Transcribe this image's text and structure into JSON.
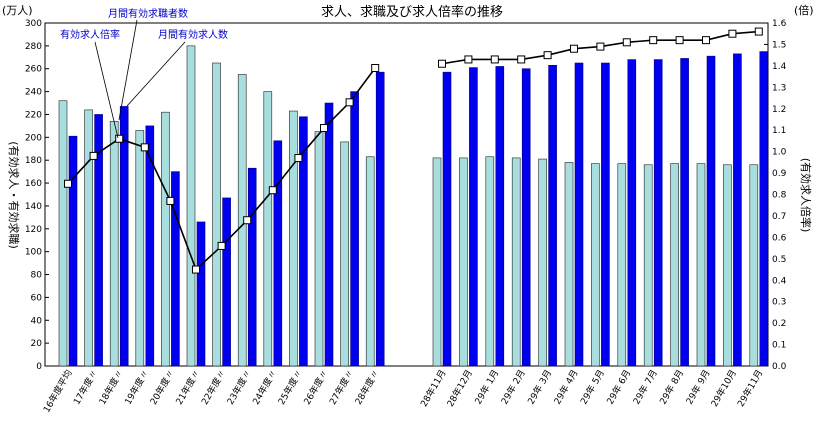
{
  "chart_data": {
    "type": "bar",
    "title": "求人、求職及び求人倍率の推移",
    "left_unit": "(万人)",
    "right_unit": "(倍)",
    "left_axis_label": "(有効求人・有効求職)",
    "right_axis_label": "(有効求人倍率)",
    "ylim_left": [
      0,
      300
    ],
    "ylim_right": [
      0.0,
      1.6
    ],
    "left_ticks": [
      "0",
      "20",
      "40",
      "60",
      "80",
      "100",
      "120",
      "140",
      "160",
      "180",
      "200",
      "220",
      "240",
      "260",
      "280",
      "300"
    ],
    "right_ticks": [
      "0.0",
      "0.1",
      "0.2",
      "0.3",
      "0.4",
      "0.5",
      "0.6",
      "0.7",
      "0.8",
      "0.9",
      "1.0",
      "1.1",
      "1.2",
      "1.3",
      "1.4",
      "1.5",
      "1.6"
    ],
    "categories_group1": [
      "16年度平均",
      "17年度〃",
      "18年度〃",
      "19年度〃",
      "20年度〃",
      "21年度〃",
      "22年度〃",
      "23年度〃",
      "24年度〃",
      "25年度〃",
      "26年度〃",
      "27年度〃",
      "28年度〃"
    ],
    "categories_group2": [
      "28年11月",
      "28年12月",
      "29年 1月",
      "29年 2月",
      "29年 3月",
      "29年 4月",
      "29年 5月",
      "29年 6月",
      "29年 7月",
      "29年 8月",
      "29年 9月",
      "29年10月",
      "29年11月"
    ],
    "series": [
      {
        "name": "月間有効求職者数",
        "color": "#a8dede",
        "values": [
          232,
          224,
          214,
          206,
          222,
          280,
          265,
          255,
          240,
          223,
          205,
          196,
          183,
          182,
          182,
          183,
          182,
          181,
          178,
          177,
          177,
          176,
          177,
          177,
          176,
          176
        ]
      },
      {
        "name": "月間有効求人数",
        "color": "#0000ee",
        "values": [
          201,
          220,
          227,
          210,
          170,
          126,
          147,
          173,
          197,
          218,
          230,
          240,
          257,
          257,
          261,
          262,
          260,
          263,
          265,
          265,
          268,
          268,
          269,
          271,
          273,
          275
        ]
      },
      {
        "name": "有効求人倍率",
        "type": "line",
        "values": [
          0.85,
          0.98,
          1.06,
          1.02,
          0.77,
          0.45,
          0.56,
          0.68,
          0.82,
          0.97,
          1.11,
          1.23,
          1.39,
          1.41,
          1.43,
          1.43,
          1.43,
          1.45,
          1.48,
          1.49,
          1.51,
          1.52,
          1.52,
          1.52,
          1.55,
          1.56
        ]
      }
    ],
    "annotations": [
      "有効求人倍率",
      "月間有効求職者数",
      "月間有効求人数"
    ],
    "colors": {
      "job_seekers": "#a8dede",
      "job_offers": "#0000ee",
      "ratio_line": "#000000",
      "marker_fill": "#ffffff"
    },
    "grid": false,
    "legend": "callouts"
  }
}
